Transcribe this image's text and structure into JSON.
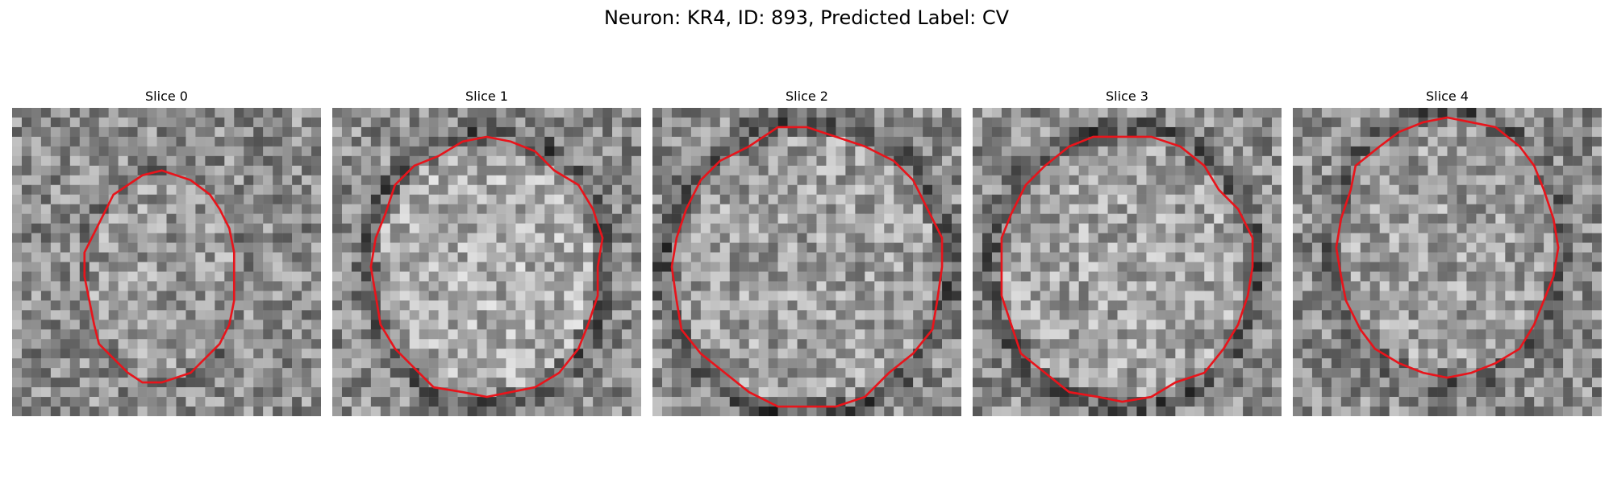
{
  "title": "Neuron: KR4, ID: 893, Predicted Label: CV",
  "contour_color": "#e8141b",
  "panels": [
    {
      "label": "Slice 0",
      "seed": 11,
      "center": [
        0.48,
        0.55
      ],
      "radius": [
        0.24,
        0.34
      ],
      "bright": 0.6,
      "ring": 0.1
    },
    {
      "label": "Slice 1",
      "seed": 23,
      "center": [
        0.5,
        0.52
      ],
      "radius": [
        0.37,
        0.42
      ],
      "bright": 0.68,
      "ring": 0.22
    },
    {
      "label": "Slice 2",
      "seed": 37,
      "center": [
        0.5,
        0.52
      ],
      "radius": [
        0.44,
        0.45
      ],
      "bright": 0.62,
      "ring": 0.25
    },
    {
      "label": "Slice 3",
      "seed": 41,
      "center": [
        0.49,
        0.52
      ],
      "radius": [
        0.41,
        0.43
      ],
      "bright": 0.64,
      "ring": 0.22
    },
    {
      "label": "Slice 4",
      "seed": 59,
      "center": [
        0.5,
        0.45
      ],
      "radius": [
        0.36,
        0.42
      ],
      "bright": 0.62,
      "ring": 0.18
    }
  ]
}
